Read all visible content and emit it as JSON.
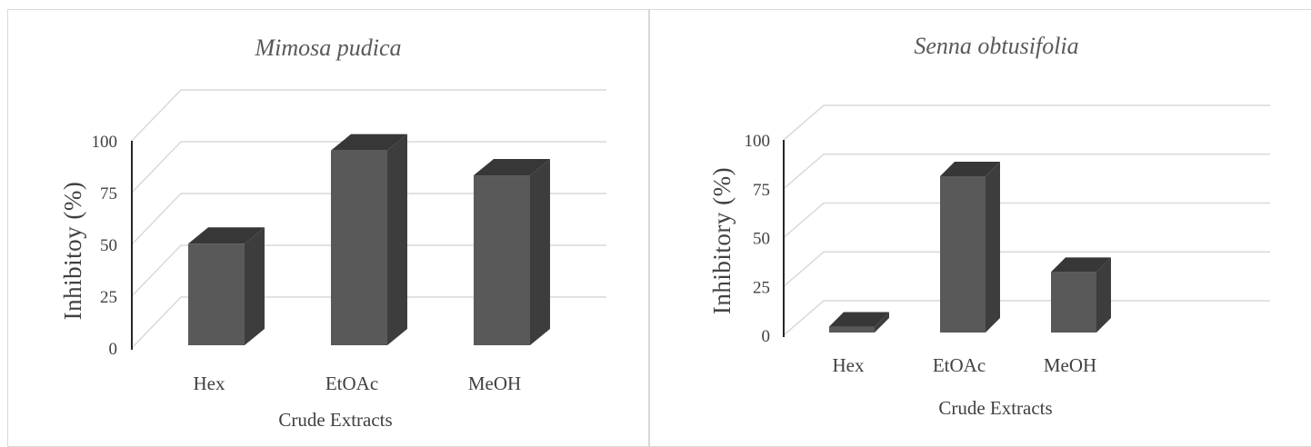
{
  "chart_data": [
    {
      "type": "bar",
      "title": "Mimosa pudica",
      "categories": [
        "Hex",
        "EtOAc",
        "MeOH"
      ],
      "values": [
        49,
        94,
        82
      ],
      "xlabel": "Crude Extracts",
      "ylabel": "Inhibitoy (%)",
      "ylim": [
        0,
        100
      ],
      "yticks": [
        0,
        25,
        50,
        75,
        100
      ],
      "grid": true,
      "bar_color": "#595959"
    },
    {
      "type": "bar",
      "title": "Senna obtusifolia",
      "categories": [
        "Hex",
        "EtOAc",
        "MeOH"
      ],
      "values": [
        3,
        80,
        31
      ],
      "xlabel": "Crude Extracts",
      "ylabel": "Inhibitory (%)",
      "ylim": [
        0,
        100
      ],
      "yticks": [
        0,
        25,
        50,
        75,
        100
      ],
      "grid": true,
      "bar_color": "#595959"
    }
  ]
}
